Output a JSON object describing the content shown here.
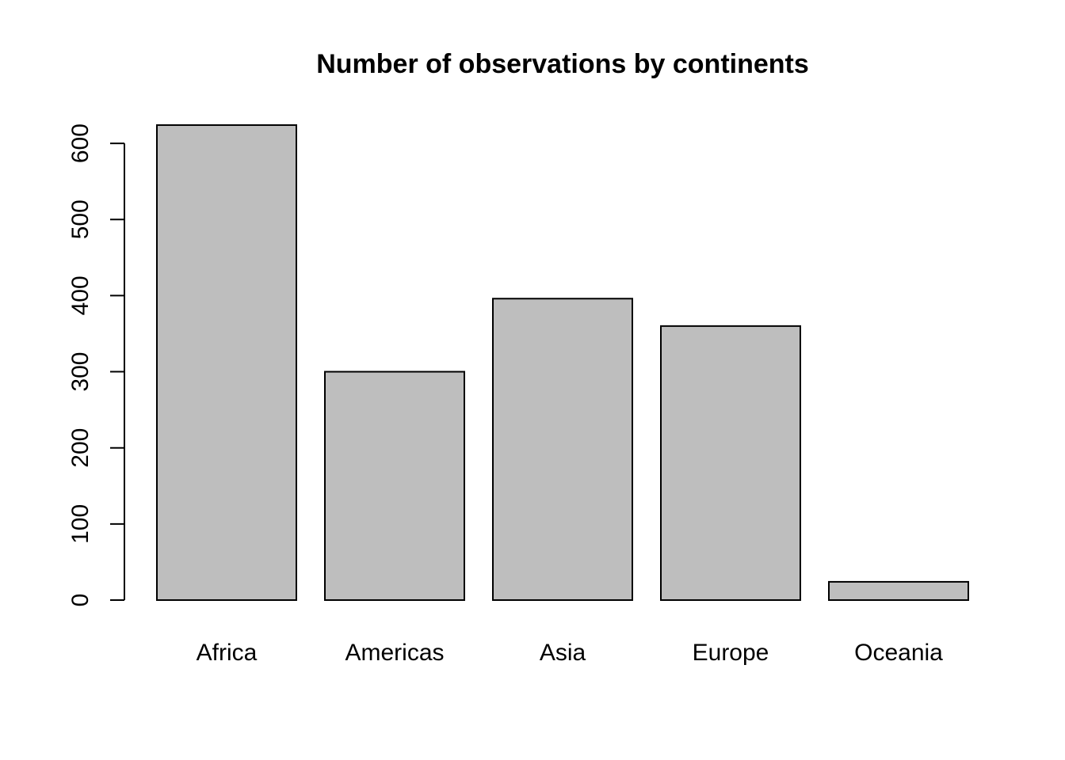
{
  "chart_data": {
    "type": "bar",
    "title": "Number of observations by continents",
    "categories": [
      "Africa",
      "Americas",
      "Asia",
      "Europe",
      "Oceania"
    ],
    "values": [
      624,
      300,
      396,
      360,
      24
    ],
    "xlabel": "",
    "ylabel": "",
    "ylim": [
      0,
      624
    ],
    "yticks": [
      0,
      100,
      200,
      300,
      400,
      500,
      600
    ],
    "grid": false,
    "legend": "none",
    "bar_color": "#bebebe",
    "border_color": "#000000"
  }
}
